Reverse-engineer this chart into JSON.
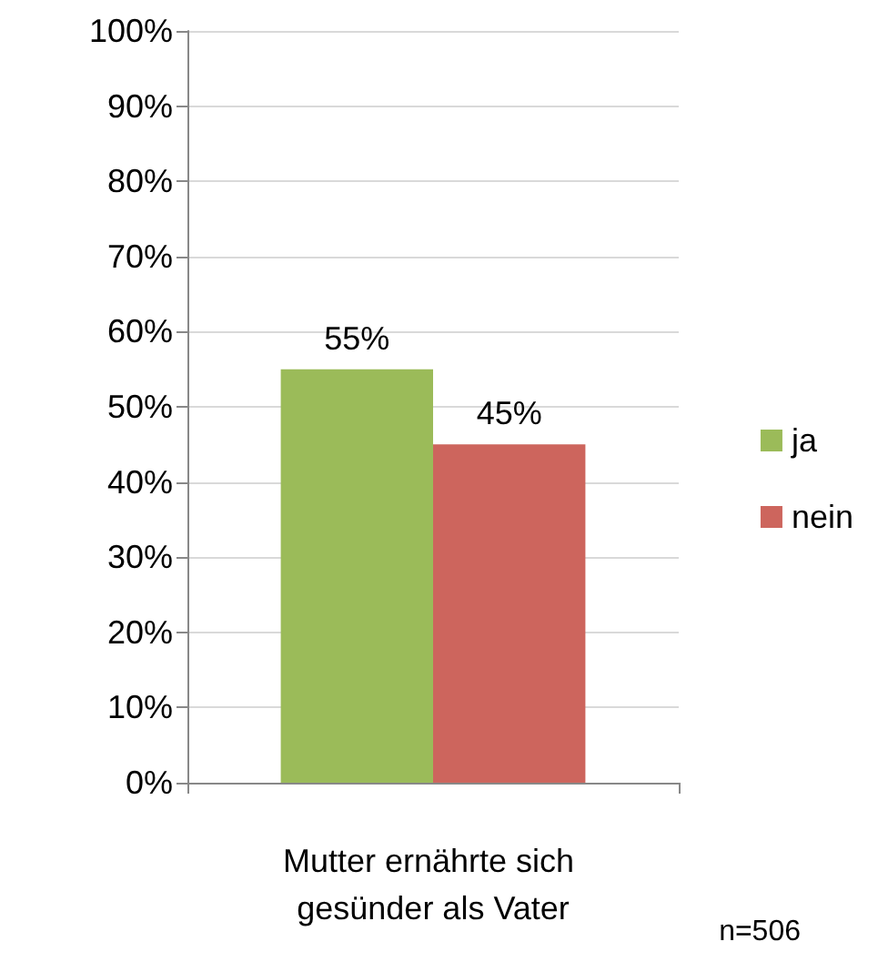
{
  "chart_data": {
    "type": "bar",
    "categories": [
      "Mutter ernährte sich gesünder als Vater"
    ],
    "series": [
      {
        "name": "ja",
        "color": "#9bbb59",
        "values": [
          55
        ],
        "value_labels": [
          "55%"
        ]
      },
      {
        "name": "nein",
        "color": "#cd655d",
        "values": [
          45
        ],
        "value_labels": [
          "45%"
        ]
      }
    ],
    "ylim": [
      0,
      100
    ],
    "yticks": [
      {
        "value": 0,
        "label": "0%"
      },
      {
        "value": 10,
        "label": "10%"
      },
      {
        "value": 20,
        "label": "20%"
      },
      {
        "value": 30,
        "label": "30%"
      },
      {
        "value": 40,
        "label": "40%"
      },
      {
        "value": 50,
        "label": "50%"
      },
      {
        "value": 60,
        "label": "60%"
      },
      {
        "value": 70,
        "label": "70%"
      },
      {
        "value": 80,
        "label": "80%"
      },
      {
        "value": 90,
        "label": "90%"
      },
      {
        "value": 100,
        "label": "100%"
      }
    ],
    "grid": "y",
    "legend": "right",
    "annotations": [
      "n=506"
    ]
  }
}
